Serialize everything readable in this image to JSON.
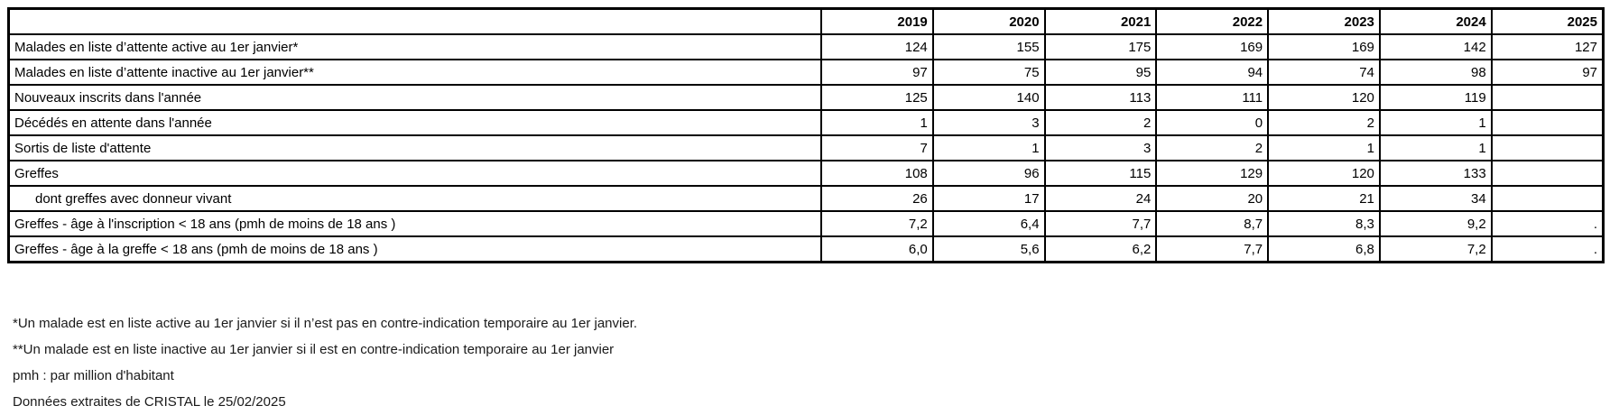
{
  "table": {
    "year_headers": [
      "2019",
      "2020",
      "2021",
      "2022",
      "2023",
      "2024",
      "2025"
    ],
    "rows": [
      {
        "label": "Malades en liste d’attente active au 1er janvier*",
        "indent": false,
        "values": [
          "124",
          "155",
          "175",
          "169",
          "169",
          "142",
          "127"
        ]
      },
      {
        "label": "Malades en liste d’attente inactive au 1er janvier**",
        "indent": false,
        "values": [
          "97",
          "75",
          "95",
          "94",
          "74",
          "98",
          "97"
        ]
      },
      {
        "label": "Nouveaux inscrits dans l'année",
        "indent": false,
        "values": [
          "125",
          "140",
          "113",
          "111",
          "120",
          "119",
          ""
        ]
      },
      {
        "label": "Décédés en attente dans l'année",
        "indent": false,
        "values": [
          "1",
          "3",
          "2",
          "0",
          "2",
          "1",
          ""
        ]
      },
      {
        "label": "Sortis de liste d'attente",
        "indent": false,
        "values": [
          "7",
          "1",
          "3",
          "2",
          "1",
          "1",
          ""
        ]
      },
      {
        "label": "Greffes",
        "indent": false,
        "values": [
          "108",
          "96",
          "115",
          "129",
          "120",
          "133",
          ""
        ]
      },
      {
        "label": "dont greffes avec donneur vivant",
        "indent": true,
        "values": [
          "26",
          "17",
          "24",
          "20",
          "21",
          "34",
          ""
        ]
      },
      {
        "label": "Greffes - âge à l'inscription < 18 ans (pmh de moins de 18 ans )",
        "indent": false,
        "values": [
          "7,2",
          "6,4",
          "7,7",
          "8,7",
          "8,3",
          "9,2",
          "."
        ]
      },
      {
        "label": "Greffes - âge à la greffe < 18 ans (pmh de moins de 18 ans )",
        "indent": false,
        "values": [
          "6,0",
          "5,6",
          "6,2",
          "7,7",
          "6,8",
          "7,2",
          "."
        ]
      }
    ]
  },
  "footnotes": [
    "*Un malade est en liste active au 1er janvier si il n’est pas en contre-indication temporaire au 1er janvier.",
    "**Un malade est en liste inactive au 1er janvier si il est en contre-indication temporaire au 1er janvier",
    "pmh : par million d'habitant",
    "Données extraites de CRISTAL le 25/02/2025"
  ],
  "colors": {
    "border": "#000000",
    "background": "#ffffff",
    "text": "#000000"
  }
}
